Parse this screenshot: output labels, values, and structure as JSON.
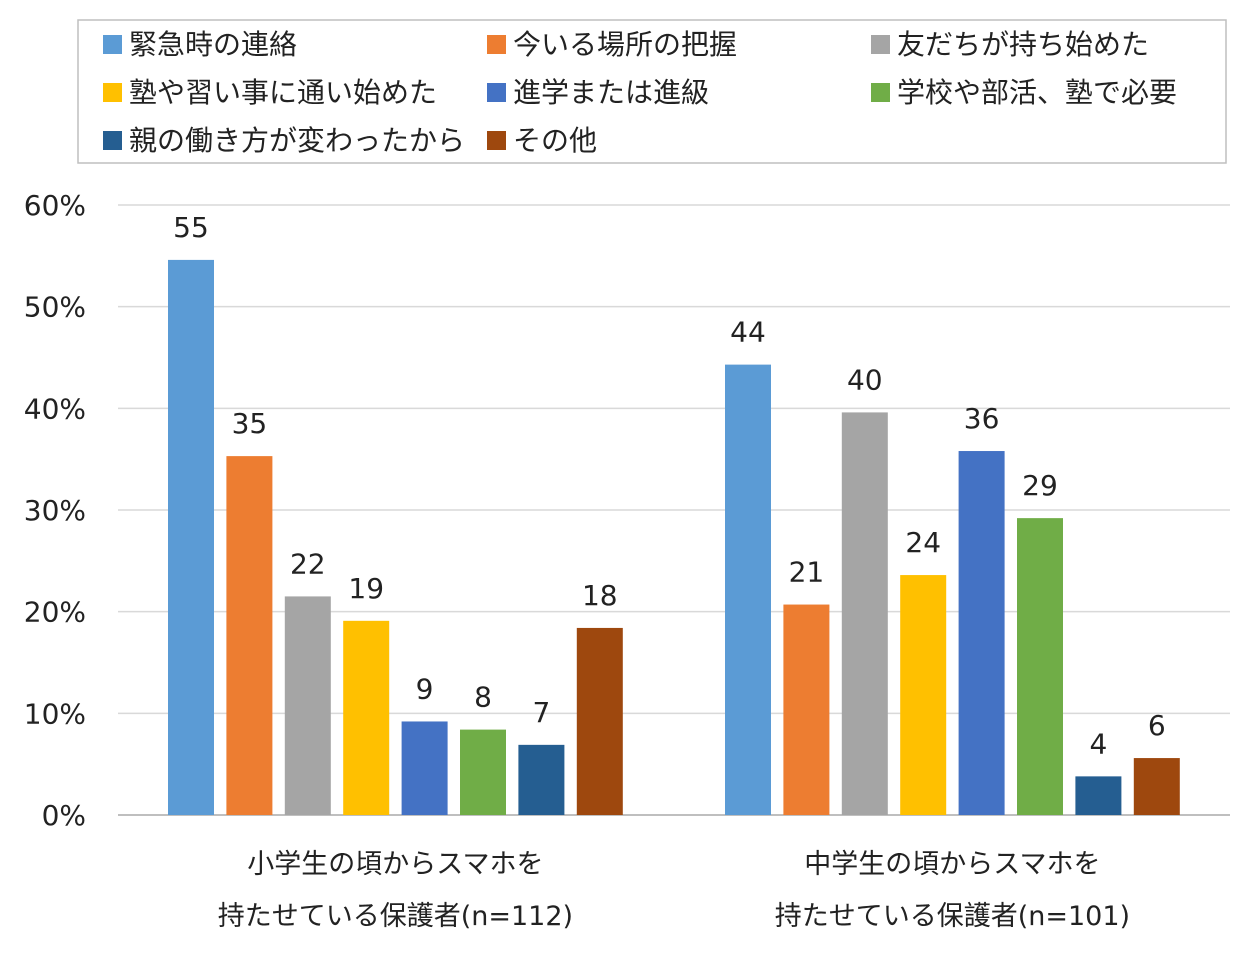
{
  "chart_data": {
    "type": "bar",
    "categories": [
      [
        "小学生の頃からスマホを",
        "持たせている保護者(n=112)"
      ],
      [
        "中学生の頃からスマホを",
        "持たせている保護者(n=101)"
      ]
    ],
    "series": [
      {
        "name": "緊急時の連絡",
        "color": "#5B9BD5",
        "values": [
          55,
          44
        ],
        "plotted": [
          54.6,
          44.3
        ]
      },
      {
        "name": "今いる場所の把握",
        "color": "#ED7D31",
        "values": [
          35,
          21
        ],
        "plotted": [
          35.3,
          20.7
        ]
      },
      {
        "name": "友だちが持ち始めた",
        "color": "#A5A5A5",
        "values": [
          22,
          40
        ],
        "plotted": [
          21.5,
          39.6
        ]
      },
      {
        "name": "塾や習い事に通い始めた",
        "color": "#FFC000",
        "values": [
          19,
          24
        ],
        "plotted": [
          19.1,
          23.6
        ]
      },
      {
        "name": "進学または進級",
        "color": "#4472C4",
        "values": [
          9,
          36
        ],
        "plotted": [
          9.2,
          35.8
        ]
      },
      {
        "name": "学校や部活、塾で必要",
        "color": "#70AD47",
        "values": [
          8,
          29
        ],
        "plotted": [
          8.4,
          29.2
        ]
      },
      {
        "name": "親の働き方が変わったから",
        "color": "#255E91",
        "values": [
          7,
          4
        ],
        "plotted": [
          6.9,
          3.8
        ]
      },
      {
        "name": "その他",
        "color": "#9E480E",
        "values": [
          18,
          6
        ],
        "plotted": [
          18.4,
          5.6
        ]
      }
    ],
    "y_ticks": [
      "0%",
      "10%",
      "20%",
      "30%",
      "40%",
      "50%",
      "60%"
    ],
    "ylim": [
      0,
      60
    ],
    "y_unit": "%",
    "grid": true,
    "legend_position": "top",
    "grid_color": "#D9D9D9",
    "axis_color": "#BFBFBF"
  }
}
